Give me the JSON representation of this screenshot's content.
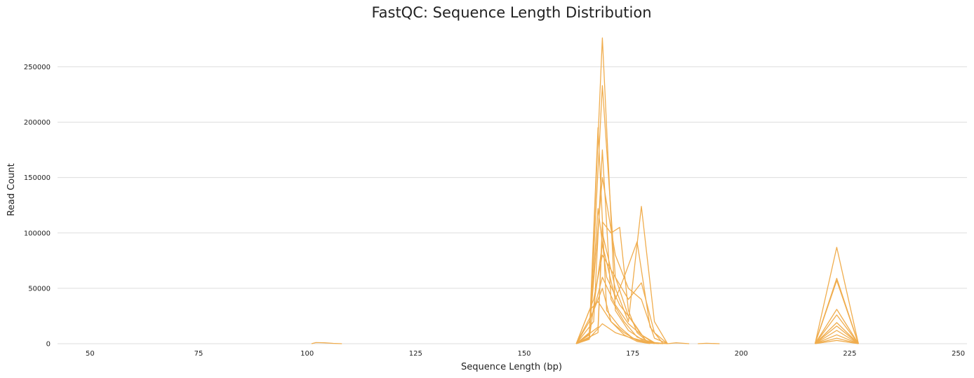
{
  "chart_data": {
    "type": "line",
    "title": "FastQC: Sequence Length Distribution",
    "xlabel": "Sequence Length (bp)",
    "ylabel": "Read Count",
    "xlim": [
      42.5,
      252
    ],
    "ylim": [
      0,
      285000
    ],
    "xticks": [
      "50",
      "75",
      "100",
      "125",
      "150",
      "175",
      "200",
      "225",
      "250"
    ],
    "yticks": [
      "0",
      "50000",
      "100000",
      "150000",
      "200000",
      "250000"
    ],
    "grid": true,
    "line_color": "#f0ad4e",
    "series": [
      {
        "x": [
          162,
          165,
          168,
          171,
          174,
          177,
          180,
          183
        ],
        "y": [
          0,
          5000,
          276000,
          30000,
          12000,
          4000,
          800,
          0
        ]
      },
      {
        "x": [
          162,
          165,
          168,
          171,
          174,
          177,
          180,
          183
        ],
        "y": [
          0,
          4000,
          233000,
          60000,
          25000,
          8000,
          1000,
          0
        ]
      },
      {
        "x": [
          162,
          165,
          167,
          169,
          172,
          175,
          178,
          181
        ],
        "y": [
          0,
          8000,
          195000,
          30000,
          15000,
          5000,
          1000,
          0
        ]
      },
      {
        "x": [
          162,
          166,
          168,
          170,
          173,
          176,
          179,
          182
        ],
        "y": [
          0,
          20000,
          175000,
          40000,
          20000,
          6000,
          1500,
          0
        ]
      },
      {
        "x": [
          162,
          165,
          168,
          171,
          174,
          177,
          180,
          183
        ],
        "y": [
          0,
          10000,
          150000,
          80000,
          50000,
          40000,
          5000,
          0
        ]
      },
      {
        "x": [
          162,
          165,
          167,
          169,
          172,
          175,
          178,
          181
        ],
        "y": [
          0,
          6000,
          122000,
          60000,
          35000,
          20000,
          3000,
          0
        ]
      },
      {
        "x": [
          162,
          167,
          168,
          170,
          172,
          174,
          176,
          179
        ],
        "y": [
          0,
          10000,
          110000,
          100000,
          105000,
          30000,
          10000,
          0
        ]
      },
      {
        "x": [
          162,
          167,
          168,
          171,
          174,
          177,
          180,
          183
        ],
        "y": [
          0,
          15000,
          100000,
          50000,
          20000,
          124000,
          20000,
          0
        ]
      },
      {
        "x": [
          162,
          165,
          168,
          171,
          173,
          176,
          179,
          182
        ],
        "y": [
          0,
          5000,
          90000,
          40000,
          60000,
          92000,
          15000,
          0
        ]
      },
      {
        "x": [
          162,
          166,
          168,
          171,
          174,
          177,
          180,
          183
        ],
        "y": [
          0,
          40000,
          80000,
          60000,
          40000,
          55000,
          10000,
          0
        ]
      },
      {
        "x": [
          162,
          165,
          168,
          170,
          173,
          176,
          179,
          182
        ],
        "y": [
          0,
          20000,
          50000,
          20000,
          10000,
          3000,
          500,
          0
        ]
      },
      {
        "x": [
          162,
          165,
          167,
          170,
          173,
          176,
          179
        ],
        "y": [
          0,
          30000,
          38000,
          20000,
          8000,
          2000,
          0
        ]
      },
      {
        "x": [
          162,
          165,
          168,
          171,
          174,
          177,
          180
        ],
        "y": [
          0,
          5000,
          18000,
          10000,
          6000,
          3000,
          0
        ]
      },
      {
        "x": [
          162,
          166,
          168,
          171,
          174,
          177,
          180
        ],
        "y": [
          0,
          30000,
          60000,
          35000,
          18000,
          8000,
          0
        ]
      },
      {
        "x": [
          101,
          102,
          104,
          106,
          108
        ],
        "y": [
          0,
          1000,
          800,
          300,
          0
        ]
      },
      {
        "x": [
          183,
          185,
          188
        ],
        "y": [
          0,
          800,
          0
        ]
      },
      {
        "x": [
          190,
          192,
          195
        ],
        "y": [
          0,
          400,
          0
        ]
      },
      {
        "x": [
          217,
          222,
          227
        ],
        "y": [
          0,
          87000,
          0
        ]
      },
      {
        "x": [
          217,
          222,
          227
        ],
        "y": [
          0,
          59000,
          0
        ]
      },
      {
        "x": [
          217,
          222,
          227
        ],
        "y": [
          0,
          57000,
          0
        ]
      },
      {
        "x": [
          217,
          222,
          227
        ],
        "y": [
          0,
          31000,
          0
        ]
      },
      {
        "x": [
          217,
          222,
          227
        ],
        "y": [
          0,
          26000,
          0
        ]
      },
      {
        "x": [
          217,
          222,
          227
        ],
        "y": [
          0,
          19000,
          0
        ]
      },
      {
        "x": [
          217,
          222,
          227
        ],
        "y": [
          0,
          16000,
          0
        ]
      },
      {
        "x": [
          217,
          222,
          227
        ],
        "y": [
          0,
          12000,
          0
        ]
      },
      {
        "x": [
          217,
          222,
          227
        ],
        "y": [
          0,
          8000,
          0
        ]
      },
      {
        "x": [
          217,
          222,
          227
        ],
        "y": [
          0,
          5000,
          0
        ]
      },
      {
        "x": [
          217,
          222,
          227
        ],
        "y": [
          0,
          3000,
          0
        ]
      }
    ]
  }
}
